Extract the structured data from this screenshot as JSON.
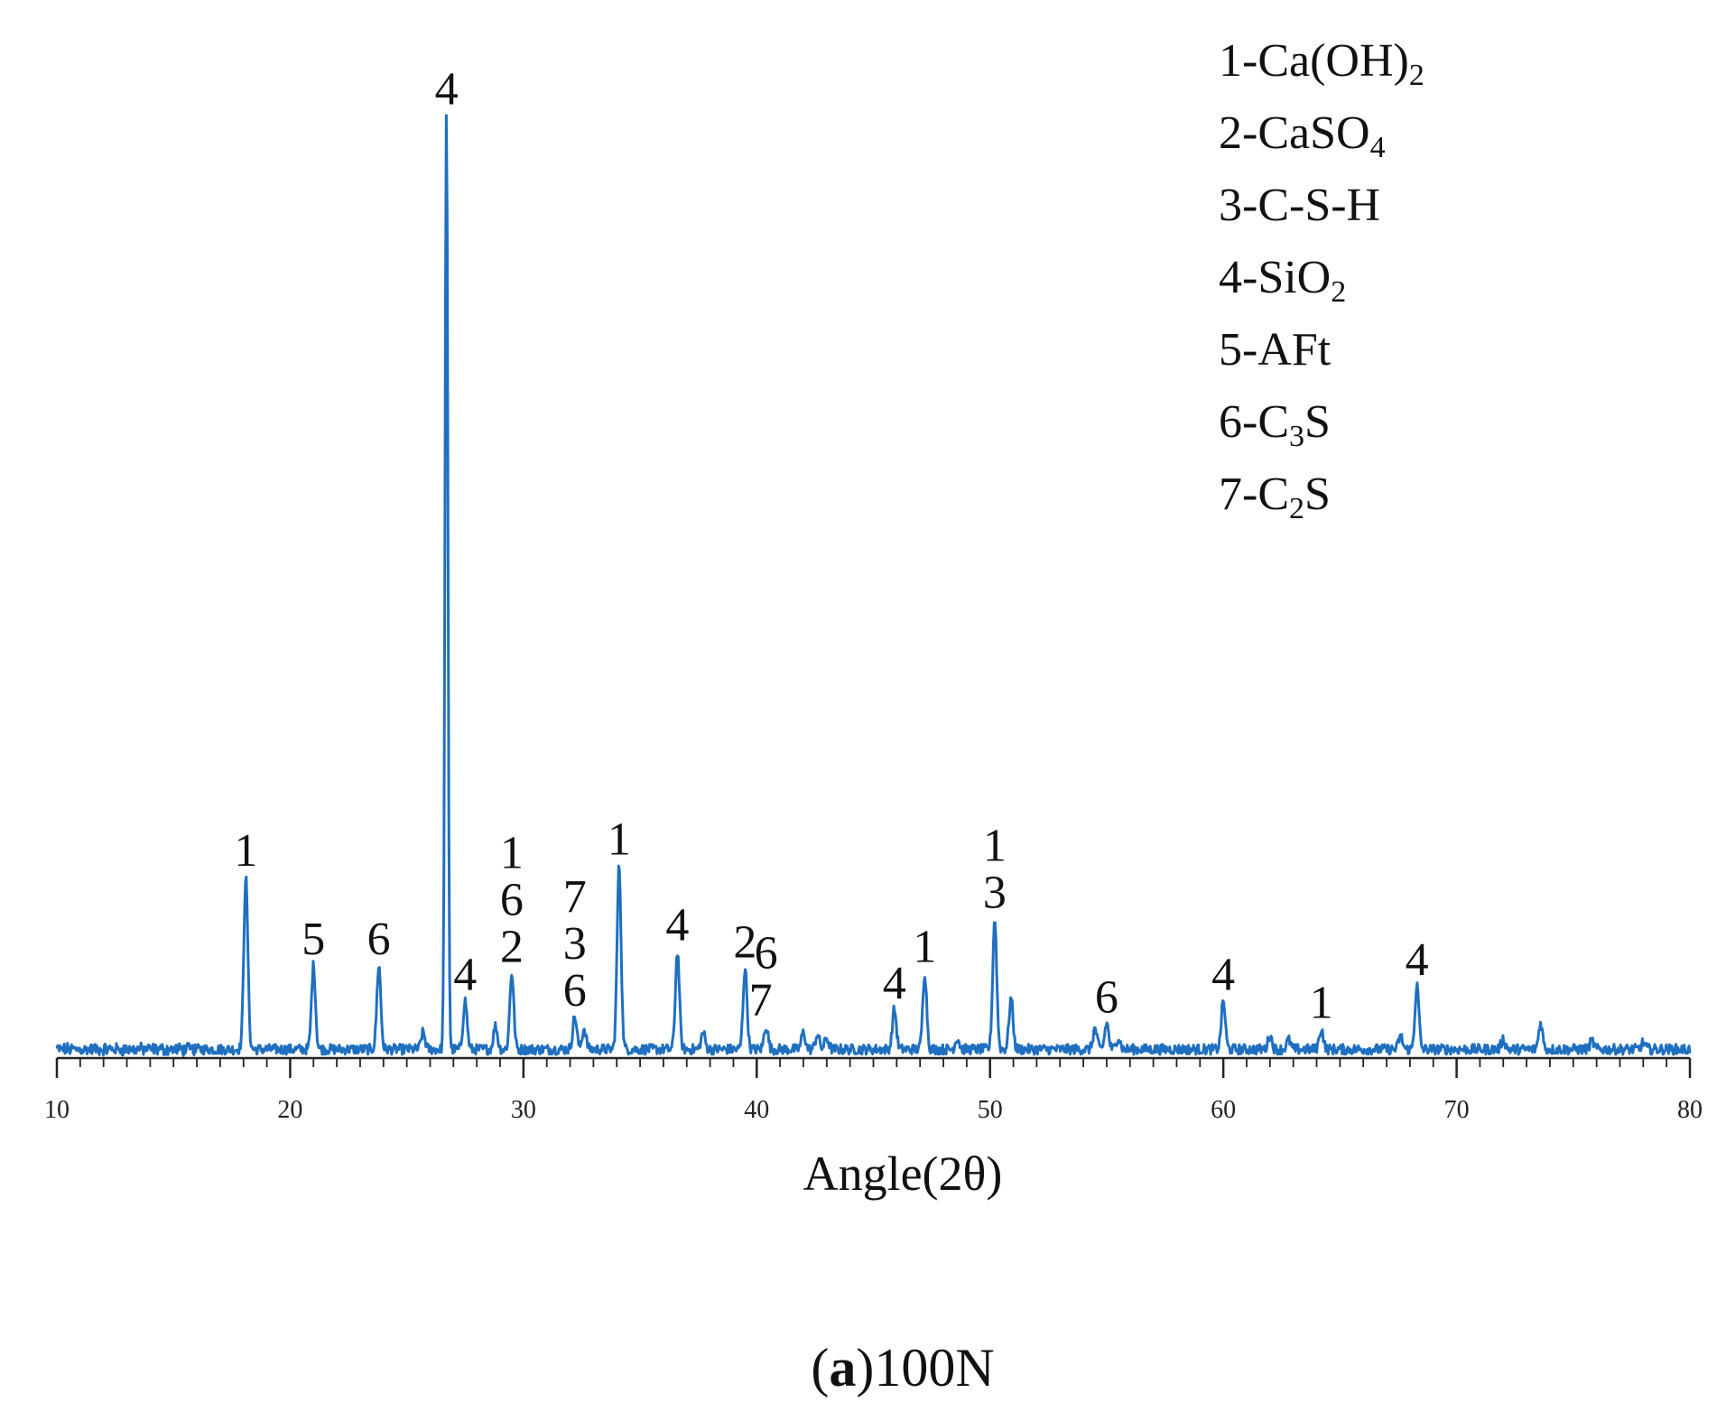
{
  "chart_data": {
    "type": "line",
    "title": "",
    "xlabel": "Angle(2θ)",
    "ylabel": "",
    "xlim": [
      10,
      80
    ],
    "xticks": [
      10,
      20,
      30,
      40,
      50,
      60,
      70,
      80
    ],
    "ylim": [
      0,
      100
    ],
    "grid": false,
    "line_color": "#1f6fc0",
    "legend_position": "top-right",
    "legend": [
      {
        "number": "1",
        "dash": "-",
        "base": "Ca(OH)",
        "sub": "2"
      },
      {
        "number": "2",
        "dash": "-",
        "base": "CaSO",
        "sub": "4"
      },
      {
        "number": "3",
        "dash": "-",
        "base": "C-S-H",
        "sub": ""
      },
      {
        "number": "4",
        "dash": "-",
        "base": "SiO",
        "sub": "2"
      },
      {
        "number": "5",
        "dash": "-",
        "base": "AFt",
        "sub": ""
      },
      {
        "number": "6",
        "dash": "-",
        "base": "C",
        "sub": "3",
        "tail": "S"
      },
      {
        "number": "7",
        "dash": "-",
        "base": "C",
        "sub": "2",
        "tail": "S"
      }
    ],
    "peaks": [
      {
        "x": 18.1,
        "y": 18.5
      },
      {
        "x": 21.0,
        "y": 9.0
      },
      {
        "x": 23.8,
        "y": 9.0
      },
      {
        "x": 25.7,
        "y": 1.8
      },
      {
        "x": 26.7,
        "y": 100.0
      },
      {
        "x": 27.5,
        "y": 5.2
      },
      {
        "x": 28.8,
        "y": 2.5
      },
      {
        "x": 29.5,
        "y": 8.2
      },
      {
        "x": 32.2,
        "y": 3.5
      },
      {
        "x": 32.6,
        "y": 2.2
      },
      {
        "x": 34.1,
        "y": 19.7
      },
      {
        "x": 36.6,
        "y": 10.5
      },
      {
        "x": 37.7,
        "y": 1.8
      },
      {
        "x": 39.5,
        "y": 8.7
      },
      {
        "x": 40.4,
        "y": 2.5
      },
      {
        "x": 42.0,
        "y": 1.8
      },
      {
        "x": 42.6,
        "y": 1.6
      },
      {
        "x": 43.0,
        "y": 1.2
      },
      {
        "x": 45.9,
        "y": 4.3
      },
      {
        "x": 47.2,
        "y": 8.2
      },
      {
        "x": 48.6,
        "y": 1.2
      },
      {
        "x": 50.2,
        "y": 14.0
      },
      {
        "x": 50.9,
        "y": 5.5
      },
      {
        "x": 54.5,
        "y": 2.2
      },
      {
        "x": 55.0,
        "y": 2.8
      },
      {
        "x": 55.5,
        "y": 1.3
      },
      {
        "x": 60.0,
        "y": 5.2
      },
      {
        "x": 62.0,
        "y": 1.5
      },
      {
        "x": 62.8,
        "y": 1.0
      },
      {
        "x": 64.2,
        "y": 2.2
      },
      {
        "x": 67.6,
        "y": 1.4
      },
      {
        "x": 68.3,
        "y": 6.8
      },
      {
        "x": 72.0,
        "y": 1.1
      },
      {
        "x": 73.6,
        "y": 2.8
      },
      {
        "x": 75.8,
        "y": 0.9
      },
      {
        "x": 78.0,
        "y": 0.7
      }
    ],
    "peak_labels": [
      {
        "x": 18.1,
        "y": 18.5,
        "labels": [
          "1"
        ]
      },
      {
        "x": 21.0,
        "y": 9.0,
        "labels": [
          "5"
        ]
      },
      {
        "x": 23.8,
        "y": 9.0,
        "labels": [
          "6"
        ]
      },
      {
        "x": 26.7,
        "y": 100.0,
        "labels": [
          "4"
        ]
      },
      {
        "x": 27.5,
        "y": 5.2,
        "labels": [
          "4"
        ]
      },
      {
        "x": 29.5,
        "y": 8.2,
        "labels": [
          "1",
          "6",
          "2"
        ]
      },
      {
        "x": 32.2,
        "y": 3.5,
        "labels": [
          "7",
          "3",
          "6"
        ]
      },
      {
        "x": 34.1,
        "y": 19.7,
        "labels": [
          "1"
        ]
      },
      {
        "x": 36.6,
        "y": 10.5,
        "labels": [
          "4"
        ]
      },
      {
        "x": 39.5,
        "y": 8.7,
        "labels": [
          "2"
        ]
      },
      {
        "x": 40.4,
        "y": 2.5,
        "labels": [
          "6",
          "7"
        ]
      },
      {
        "x": 45.9,
        "y": 4.3,
        "labels": [
          "4"
        ]
      },
      {
        "x": 47.2,
        "y": 8.2,
        "labels": [
          "1"
        ]
      },
      {
        "x": 50.2,
        "y": 14.0,
        "labels": [
          "1",
          "3"
        ]
      },
      {
        "x": 55.0,
        "y": 2.8,
        "labels": [
          "6"
        ]
      },
      {
        "x": 60.0,
        "y": 5.2,
        "labels": [
          "4"
        ]
      },
      {
        "x": 64.2,
        "y": 2.2,
        "labels": [
          "1"
        ]
      },
      {
        "x": 68.3,
        "y": 6.8,
        "labels": [
          "4"
        ]
      }
    ]
  },
  "caption": {
    "letter": "a",
    "text": "100N"
  }
}
